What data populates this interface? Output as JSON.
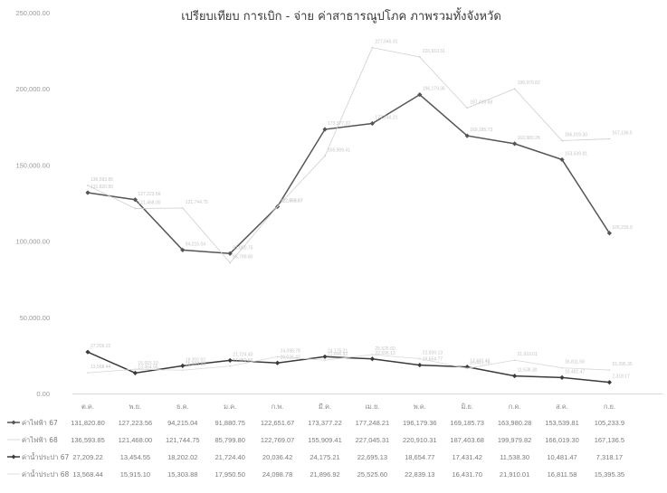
{
  "chart_data": {
    "type": "line",
    "title": "เปรียบเทียบ การเบิก - จ่าย ค่าสาธารณูปโภค ภาพรวมทั้งจังหวัด",
    "xlabel": "",
    "ylabel": "",
    "ylim": [
      0,
      250000
    ],
    "yticks": [
      "250,000.00",
      "200,000.00",
      "150,000.00",
      "100,000.00",
      "50,000.00",
      "0.00"
    ],
    "grid": false,
    "legend": "data-table-below",
    "categories": [
      "ต.ค.",
      "พ.ย.",
      "ธ.ค.",
      "ม.ค.",
      "ก.พ.",
      "มี.ค.",
      "เม.ย.",
      "พ.ค.",
      "มิ.ย.",
      "ก.ค.",
      "ส.ค.",
      "ก.ย."
    ],
    "series": [
      {
        "name": "ค่าไฟฟ้า 67",
        "color": "#555555",
        "values": [
          131820.8,
          127223.56,
          94215.04,
          91880.75,
          122651.67,
          173377.22,
          177248.21,
          196179.36,
          169185.73,
          163980.28,
          153539.81,
          105233.9
        ],
        "display": [
          "131,820.80",
          "127,223.56",
          "94,215.04",
          "91,880.75",
          "122,651.67",
          "173,377.22",
          "177,248.21",
          "196,179.36",
          "169,185.73",
          "163,980.28",
          "153,539.81",
          "105,233.9"
        ]
      },
      {
        "name": "ค่าไฟฟ้า 68",
        "color": "#cfcfcf",
        "values": [
          136593.85,
          121468.0,
          121744.75,
          85799.8,
          122769.07,
          155909.41,
          227045.31,
          220910.31,
          187403.68,
          199979.82,
          166019.3,
          167136.5
        ],
        "display": [
          "136,593.85",
          "121,468.00",
          "121,744.75",
          "85,799.80",
          "122,769.07",
          "155,909.41",
          "227,045.31",
          "220,910.31",
          "187,403.68",
          "199,979.82",
          "166,019.30",
          "167,136.5"
        ]
      },
      {
        "name": "ค่าน้ำประปา 67",
        "color": "#3a3a3a",
        "values": [
          27209.22,
          13454.55,
          18202.02,
          21724.4,
          20036.42,
          24175.21,
          22695.13,
          18654.77,
          17431.42,
          11538.3,
          10481.47,
          7318.17
        ],
        "display": [
          "27,209.22",
          "13,454.55",
          "18,202.02",
          "21,724.40",
          "20,036.42",
          "24,175.21",
          "22,695.13",
          "18,654.77",
          "17,431.42",
          "11,538.30",
          "10,481.47",
          "7,318.17"
        ]
      },
      {
        "name": "ค่าน้ำประปา 68",
        "color": "#d8d8d8",
        "values": [
          13568.44,
          15915.1,
          15303.88,
          17950.5,
          24098.78,
          21896.92,
          25525.6,
          22839.13,
          16431.7,
          21910.01,
          16811.58,
          15395.35
        ],
        "display": [
          "13,568.44",
          "15,915.10",
          "15,303.88",
          "17,950.50",
          "24,098.78",
          "21,896.92",
          "25,525.60",
          "22,839.13",
          "16,431.70",
          "21,910.01",
          "16,811.58",
          "15,395.35"
        ]
      }
    ]
  }
}
